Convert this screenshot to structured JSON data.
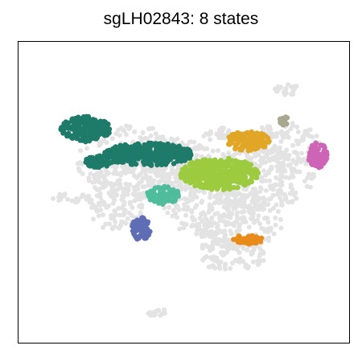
{
  "chart_data": {
    "type": "scatter",
    "title": "sgLH02843: 8 states",
    "xlabel": "",
    "ylabel": "",
    "xlim": [
      0,
      100
    ],
    "ylim": [
      0,
      100
    ],
    "grid": false,
    "axes_ticks": false,
    "background_points_color": "#e3e3e3",
    "background_regions": [
      {
        "cx": 35,
        "cy": 60,
        "rx": 17,
        "ry": 12
      },
      {
        "cx": 50,
        "cy": 58,
        "rx": 14,
        "ry": 9
      },
      {
        "cx": 57,
        "cy": 45,
        "rx": 13,
        "ry": 10
      },
      {
        "cx": 67,
        "cy": 40,
        "rx": 13,
        "ry": 9
      },
      {
        "cx": 74,
        "cy": 55,
        "rx": 16,
        "ry": 11
      },
      {
        "cx": 80,
        "cy": 65,
        "rx": 12,
        "ry": 8
      },
      {
        "cx": 30,
        "cy": 45,
        "rx": 9,
        "ry": 8
      },
      {
        "cx": 64,
        "cy": 29,
        "rx": 11,
        "ry": 5
      },
      {
        "cx": 16,
        "cy": 48,
        "rx": 6,
        "ry": 1.5
      },
      {
        "cx": 81,
        "cy": 84,
        "rx": 4,
        "ry": 2
      },
      {
        "cx": 43,
        "cy": 10,
        "rx": 4,
        "ry": 1.5
      },
      {
        "cx": 61,
        "cy": 69,
        "rx": 5,
        "ry": 2.5
      }
    ],
    "series": [
      {
        "name": "",
        "color": "#1e7b6a",
        "clusters": [
          {
            "cx": 20.5,
            "cy": 70.8,
            "rx": 7.5,
            "ry": 4.2
          },
          {
            "cx": 39.5,
            "cy": 62.5,
            "rx": 13.5,
            "ry": 3.8
          },
          {
            "cx": 25,
            "cy": 60,
            "rx": 5,
            "ry": 2
          }
        ]
      },
      {
        "name": "",
        "color": "#9ccb3f",
        "clusters": [
          {
            "cx": 60.8,
            "cy": 56,
            "rx": 11.8,
            "ry": 5.3
          }
        ]
      },
      {
        "name": "",
        "color": "#e2a626",
        "clusters": [
          {
            "cx": 69.5,
            "cy": 66.8,
            "rx": 6.5,
            "ry": 3.2
          }
        ]
      },
      {
        "name": "",
        "color": "#ce64b5",
        "clusters": [
          {
            "cx": 90.5,
            "cy": 62.2,
            "rx": 3,
            "ry": 4.2
          }
        ]
      },
      {
        "name": "",
        "color": "#a8a890",
        "clusters": [
          {
            "cx": 80.5,
            "cy": 73.5,
            "rx": 1.5,
            "ry": 1.4
          }
        ]
      },
      {
        "name": "",
        "color": "#4fbd9c",
        "clusters": [
          {
            "cx": 43.8,
            "cy": 48.8,
            "rx": 5,
            "ry": 3
          }
        ]
      },
      {
        "name": "",
        "color": "#5f6db5",
        "clusters": [
          {
            "cx": 37.2,
            "cy": 37.8,
            "rx": 2.8,
            "ry": 3.8
          }
        ]
      },
      {
        "name": "",
        "color": "#e88b1b",
        "clusters": [
          {
            "cx": 69.5,
            "cy": 34.2,
            "rx": 4.5,
            "ry": 1.6
          }
        ]
      }
    ]
  }
}
